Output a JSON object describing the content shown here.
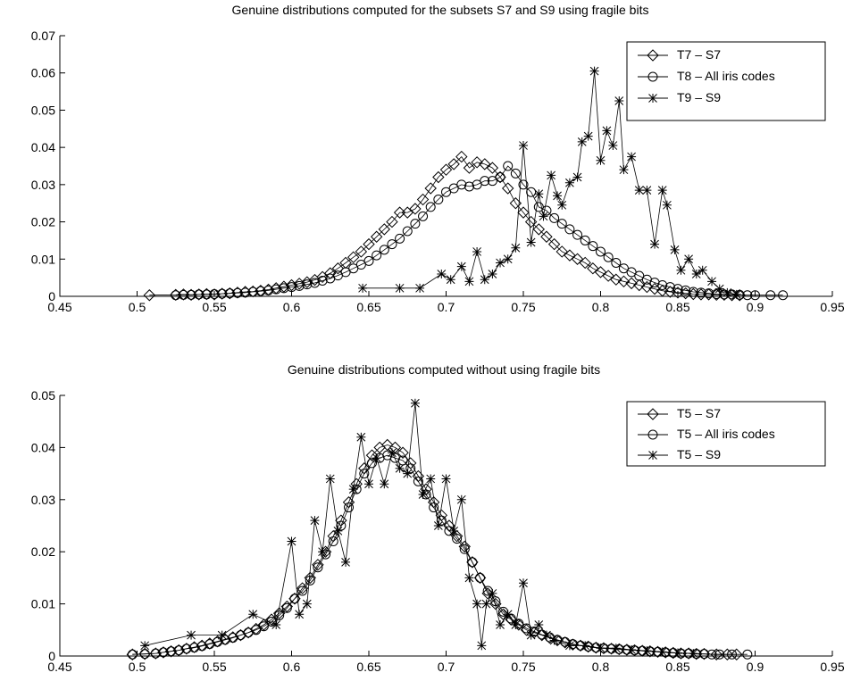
{
  "chart_data": [
    {
      "type": "line",
      "title": "Genuine distributions computed for the subsets S7 and S9 using fragile bits",
      "xlabel": "",
      "ylabel": "",
      "xlim": [
        0.45,
        0.95
      ],
      "ylim": [
        0,
        0.07
      ],
      "xticks": [
        0.45,
        0.5,
        0.55,
        0.6,
        0.65,
        0.7,
        0.75,
        0.8,
        0.85,
        0.9,
        0.95
      ],
      "xtick_labels": [
        "0.45",
        "0.5",
        "0.55",
        "0.6",
        "0.65",
        "0.7",
        "0.75",
        "0.8",
        "0.85",
        "0.9",
        "0.95"
      ],
      "yticks": [
        0,
        0.01,
        0.02,
        0.03,
        0.04,
        0.05,
        0.06,
        0.07
      ],
      "ytick_labels": [
        "0",
        "0.01",
        "0.02",
        "0.03",
        "0.04",
        "0.05",
        "0.06",
        "0.07"
      ],
      "grid": false,
      "legend_position": "top-right",
      "series": [
        {
          "name": "T7 – S7",
          "marker": "diamond",
          "x": [
            0.508,
            0.525,
            0.53,
            0.535,
            0.54,
            0.545,
            0.55,
            0.555,
            0.56,
            0.565,
            0.57,
            0.575,
            0.58,
            0.585,
            0.59,
            0.595,
            0.6,
            0.605,
            0.61,
            0.615,
            0.62,
            0.625,
            0.63,
            0.635,
            0.64,
            0.645,
            0.65,
            0.655,
            0.66,
            0.665,
            0.67,
            0.675,
            0.68,
            0.685,
            0.69,
            0.695,
            0.7,
            0.705,
            0.71,
            0.715,
            0.72,
            0.725,
            0.73,
            0.735,
            0.74,
            0.745,
            0.75,
            0.755,
            0.76,
            0.765,
            0.77,
            0.775,
            0.78,
            0.785,
            0.79,
            0.795,
            0.8,
            0.805,
            0.81,
            0.815,
            0.82,
            0.825,
            0.83,
            0.835,
            0.84,
            0.845,
            0.85,
            0.855,
            0.86,
            0.865,
            0.87,
            0.875,
            0.88,
            0.885,
            0.89
          ],
          "y": [
            0.0003,
            0.0004,
            0.0005,
            0.0004,
            0.0005,
            0.0006,
            0.0005,
            0.0007,
            0.0008,
            0.001,
            0.0012,
            0.0013,
            0.0015,
            0.0018,
            0.0022,
            0.0026,
            0.003,
            0.0034,
            0.0038,
            0.0044,
            0.0052,
            0.0062,
            0.0075,
            0.009,
            0.0105,
            0.012,
            0.014,
            0.016,
            0.018,
            0.02,
            0.0225,
            0.0225,
            0.0235,
            0.026,
            0.029,
            0.032,
            0.034,
            0.0355,
            0.0375,
            0.0345,
            0.036,
            0.0355,
            0.0345,
            0.032,
            0.029,
            0.025,
            0.0225,
            0.02,
            0.018,
            0.016,
            0.014,
            0.012,
            0.011,
            0.01,
            0.009,
            0.0075,
            0.0065,
            0.0055,
            0.0045,
            0.004,
            0.0035,
            0.003,
            0.0025,
            0.002,
            0.0015,
            0.0012,
            0.001,
            0.0008,
            0.0006,
            0.0005,
            0.0005,
            0.0004,
            0.0004,
            0.0003,
            0.0003
          ]
        },
        {
          "name": "T8 – All iris codes",
          "marker": "circle",
          "x": [
            0.525,
            0.53,
            0.535,
            0.54,
            0.545,
            0.55,
            0.555,
            0.56,
            0.565,
            0.57,
            0.575,
            0.58,
            0.585,
            0.59,
            0.595,
            0.6,
            0.605,
            0.61,
            0.615,
            0.62,
            0.625,
            0.63,
            0.635,
            0.64,
            0.645,
            0.65,
            0.655,
            0.66,
            0.665,
            0.67,
            0.675,
            0.68,
            0.685,
            0.69,
            0.695,
            0.7,
            0.705,
            0.71,
            0.715,
            0.72,
            0.725,
            0.73,
            0.735,
            0.74,
            0.745,
            0.75,
            0.755,
            0.76,
            0.765,
            0.77,
            0.775,
            0.78,
            0.785,
            0.79,
            0.795,
            0.8,
            0.805,
            0.81,
            0.815,
            0.82,
            0.825,
            0.83,
            0.835,
            0.84,
            0.845,
            0.85,
            0.855,
            0.86,
            0.865,
            0.87,
            0.875,
            0.88,
            0.885,
            0.89,
            0.895,
            0.9,
            0.91,
            0.918
          ],
          "y": [
            0.0003,
            0.0004,
            0.0004,
            0.0005,
            0.0005,
            0.0006,
            0.0007,
            0.0008,
            0.0009,
            0.001,
            0.0012,
            0.0014,
            0.0016,
            0.0019,
            0.0022,
            0.0025,
            0.0028,
            0.0032,
            0.0036,
            0.0042,
            0.0048,
            0.0056,
            0.0065,
            0.0075,
            0.0085,
            0.0095,
            0.011,
            0.0125,
            0.014,
            0.0155,
            0.0175,
            0.0195,
            0.0215,
            0.024,
            0.026,
            0.028,
            0.029,
            0.03,
            0.0295,
            0.03,
            0.031,
            0.031,
            0.032,
            0.035,
            0.033,
            0.03,
            0.028,
            0.024,
            0.023,
            0.021,
            0.0195,
            0.018,
            0.0165,
            0.015,
            0.0135,
            0.012,
            0.0105,
            0.009,
            0.0075,
            0.0065,
            0.0055,
            0.0045,
            0.0037,
            0.003,
            0.0025,
            0.002,
            0.0016,
            0.0012,
            0.001,
            0.0008,
            0.0006,
            0.0005,
            0.0005,
            0.0004,
            0.0003,
            0.0003,
            0.0003,
            0.0003
          ]
        },
        {
          "name": "T9 – S9",
          "marker": "star",
          "x": [
            0.646,
            0.67,
            0.683,
            0.697,
            0.703,
            0.71,
            0.715,
            0.72,
            0.725,
            0.73,
            0.735,
            0.74,
            0.745,
            0.75,
            0.755,
            0.76,
            0.763,
            0.768,
            0.772,
            0.775,
            0.78,
            0.785,
            0.788,
            0.792,
            0.796,
            0.8,
            0.804,
            0.808,
            0.812,
            0.815,
            0.82,
            0.825,
            0.83,
            0.835,
            0.84,
            0.843,
            0.848,
            0.852,
            0.857,
            0.862,
            0.866,
            0.872,
            0.877,
            0.882,
            0.888
          ],
          "y": [
            0.0022,
            0.0022,
            0.0022,
            0.006,
            0.0045,
            0.008,
            0.004,
            0.012,
            0.0045,
            0.006,
            0.009,
            0.01,
            0.013,
            0.0405,
            0.0145,
            0.0275,
            0.0215,
            0.0325,
            0.027,
            0.0245,
            0.0305,
            0.032,
            0.0415,
            0.043,
            0.0605,
            0.0365,
            0.0445,
            0.0405,
            0.0525,
            0.034,
            0.0375,
            0.0285,
            0.0285,
            0.014,
            0.0285,
            0.0245,
            0.0125,
            0.007,
            0.01,
            0.006,
            0.007,
            0.004,
            0.002,
            0.001,
            0.0005
          ]
        }
      ]
    },
    {
      "type": "line",
      "title": "Genuine distributions computed without using fragile bits",
      "xlabel": "",
      "ylabel": "",
      "xlim": [
        0.45,
        0.95
      ],
      "ylim": [
        0,
        0.05
      ],
      "xticks": [
        0.45,
        0.5,
        0.55,
        0.6,
        0.65,
        0.7,
        0.75,
        0.8,
        0.85,
        0.9,
        0.95
      ],
      "xtick_labels": [
        "0.45",
        "0.5",
        "0.55",
        "0.6",
        "0.65",
        "0.7",
        "0.75",
        "0.8",
        "0.85",
        "0.9",
        "0.95"
      ],
      "yticks": [
        0,
        0.01,
        0.02,
        0.03,
        0.04,
        0.05
      ],
      "ytick_labels": [
        "0",
        "0.01",
        "0.02",
        "0.03",
        "0.04",
        "0.05"
      ],
      "grid": false,
      "legend_position": "top-right",
      "series": [
        {
          "name": "T5 – S7",
          "marker": "diamond",
          "x": [
            0.497,
            0.505,
            0.512,
            0.517,
            0.522,
            0.527,
            0.532,
            0.537,
            0.542,
            0.547,
            0.552,
            0.557,
            0.562,
            0.567,
            0.572,
            0.577,
            0.582,
            0.587,
            0.592,
            0.597,
            0.602,
            0.607,
            0.612,
            0.617,
            0.622,
            0.627,
            0.632,
            0.637,
            0.642,
            0.647,
            0.652,
            0.657,
            0.662,
            0.667,
            0.672,
            0.677,
            0.682,
            0.687,
            0.692,
            0.697,
            0.702,
            0.707,
            0.712,
            0.717,
            0.722,
            0.727,
            0.732,
            0.737,
            0.742,
            0.747,
            0.752,
            0.757,
            0.762,
            0.767,
            0.772,
            0.777,
            0.782,
            0.787,
            0.792,
            0.797,
            0.802,
            0.807,
            0.812,
            0.817,
            0.822,
            0.827,
            0.832,
            0.837,
            0.842,
            0.847,
            0.852,
            0.857,
            0.862,
            0.867,
            0.875,
            0.882,
            0.888
          ],
          "y": [
            0.0003,
            0.0004,
            0.0005,
            0.0007,
            0.0009,
            0.0011,
            0.0014,
            0.0017,
            0.002,
            0.0024,
            0.0028,
            0.0032,
            0.0036,
            0.004,
            0.0045,
            0.0052,
            0.006,
            0.007,
            0.0082,
            0.0095,
            0.011,
            0.013,
            0.015,
            0.0175,
            0.02,
            0.023,
            0.026,
            0.0295,
            0.033,
            0.036,
            0.0385,
            0.04,
            0.0405,
            0.04,
            0.039,
            0.037,
            0.0345,
            0.032,
            0.0295,
            0.027,
            0.025,
            0.023,
            0.021,
            0.018,
            0.015,
            0.012,
            0.01,
            0.008,
            0.007,
            0.006,
            0.005,
            0.0045,
            0.004,
            0.0035,
            0.003,
            0.0026,
            0.0022,
            0.002,
            0.0018,
            0.0016,
            0.0015,
            0.0014,
            0.0013,
            0.0012,
            0.0011,
            0.001,
            0.0009,
            0.0008,
            0.0007,
            0.0006,
            0.0005,
            0.0005,
            0.0004,
            0.0004,
            0.0003,
            0.0003,
            0.0003
          ]
        },
        {
          "name": "T5 – All iris codes",
          "marker": "circle",
          "x": [
            0.497,
            0.505,
            0.512,
            0.517,
            0.522,
            0.527,
            0.532,
            0.537,
            0.542,
            0.547,
            0.552,
            0.557,
            0.562,
            0.567,
            0.572,
            0.577,
            0.582,
            0.587,
            0.592,
            0.597,
            0.602,
            0.607,
            0.612,
            0.617,
            0.622,
            0.627,
            0.632,
            0.637,
            0.642,
            0.647,
            0.652,
            0.657,
            0.662,
            0.667,
            0.672,
            0.677,
            0.682,
            0.687,
            0.692,
            0.697,
            0.702,
            0.707,
            0.712,
            0.717,
            0.722,
            0.727,
            0.732,
            0.737,
            0.742,
            0.747,
            0.752,
            0.757,
            0.762,
            0.767,
            0.772,
            0.777,
            0.782,
            0.787,
            0.792,
            0.797,
            0.802,
            0.807,
            0.812,
            0.817,
            0.822,
            0.827,
            0.832,
            0.837,
            0.842,
            0.847,
            0.852,
            0.857,
            0.862,
            0.867,
            0.872,
            0.877,
            0.885,
            0.895
          ],
          "y": [
            0.0003,
            0.0004,
            0.0005,
            0.0007,
            0.0009,
            0.0011,
            0.0014,
            0.0016,
            0.0019,
            0.0023,
            0.0027,
            0.0031,
            0.0035,
            0.004,
            0.0045,
            0.005,
            0.0057,
            0.0066,
            0.0078,
            0.0092,
            0.011,
            0.0125,
            0.0145,
            0.017,
            0.0195,
            0.022,
            0.025,
            0.0285,
            0.032,
            0.035,
            0.037,
            0.038,
            0.0385,
            0.038,
            0.0375,
            0.036,
            0.0335,
            0.031,
            0.0285,
            0.026,
            0.024,
            0.0225,
            0.0205,
            0.018,
            0.015,
            0.0125,
            0.0105,
            0.0085,
            0.0072,
            0.0062,
            0.0053,
            0.0047,
            0.0041,
            0.0036,
            0.0031,
            0.0027,
            0.0023,
            0.002,
            0.0018,
            0.0016,
            0.0015,
            0.0014,
            0.0013,
            0.0012,
            0.0011,
            0.001,
            0.0009,
            0.0008,
            0.0007,
            0.0006,
            0.0005,
            0.0005,
            0.0004,
            0.0004,
            0.0003,
            0.0003,
            0.0003,
            0.0003
          ]
        },
        {
          "name": "T5 – S9",
          "marker": "star",
          "x": [
            0.505,
            0.535,
            0.555,
            0.575,
            0.59,
            0.6,
            0.605,
            0.61,
            0.615,
            0.62,
            0.625,
            0.63,
            0.635,
            0.64,
            0.645,
            0.65,
            0.655,
            0.66,
            0.665,
            0.67,
            0.675,
            0.68,
            0.685,
            0.69,
            0.695,
            0.7,
            0.705,
            0.71,
            0.715,
            0.72,
            0.723,
            0.726,
            0.73,
            0.735,
            0.74,
            0.745,
            0.75,
            0.755,
            0.76,
            0.765,
            0.77,
            0.78,
            0.79,
            0.8,
            0.81,
            0.82,
            0.83,
            0.84,
            0.85,
            0.86
          ],
          "y": [
            0.002,
            0.004,
            0.004,
            0.008,
            0.006,
            0.022,
            0.008,
            0.01,
            0.026,
            0.02,
            0.034,
            0.024,
            0.018,
            0.032,
            0.042,
            0.033,
            0.038,
            0.033,
            0.039,
            0.036,
            0.035,
            0.0485,
            0.031,
            0.034,
            0.025,
            0.034,
            0.024,
            0.03,
            0.015,
            0.01,
            0.002,
            0.01,
            0.012,
            0.006,
            0.008,
            0.006,
            0.014,
            0.004,
            0.006,
            0.004,
            0.003,
            0.002,
            0.002,
            0.0015,
            0.0015,
            0.0012,
            0.001,
            0.0008,
            0.0006,
            0.0005
          ]
        }
      ]
    }
  ]
}
